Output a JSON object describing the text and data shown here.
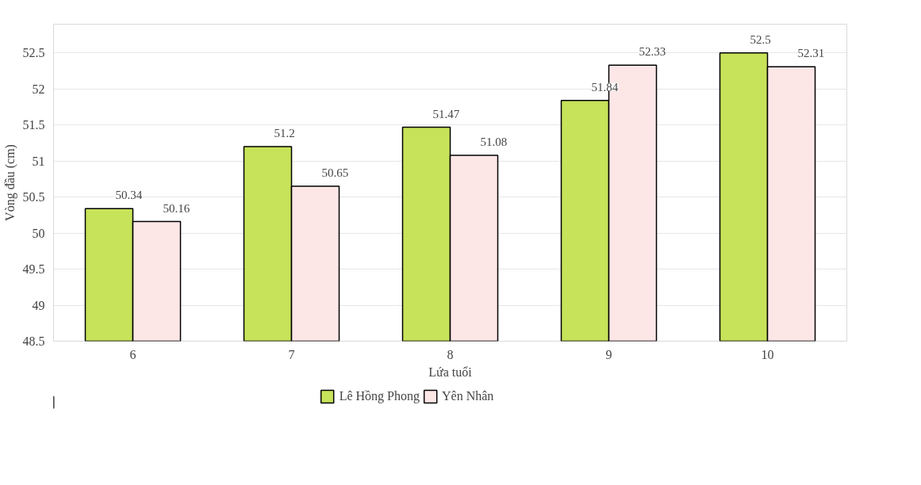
{
  "chart_data": {
    "type": "bar",
    "xlabel": "Lứa tuổi",
    "ylabel": "Vòng đầu (cm)",
    "categories": [
      "6",
      "7",
      "8",
      "9",
      "10"
    ],
    "series": [
      {
        "name": "Lê Hồng Phong",
        "color": "#c6e35a",
        "values": [
          50.34,
          51.2,
          51.47,
          51.84,
          52.5
        ]
      },
      {
        "name": "Yên Nhân",
        "color": "#fde6e6",
        "values": [
          50.16,
          50.65,
          51.08,
          52.33,
          52.31
        ]
      }
    ],
    "ylim": [
      48.5,
      52.9
    ],
    "yticks": [
      48.5,
      49,
      49.5,
      50,
      50.5,
      51,
      51.5,
      52,
      52.5
    ],
    "grid": "y",
    "legend": "bottom",
    "data_labels": true
  }
}
